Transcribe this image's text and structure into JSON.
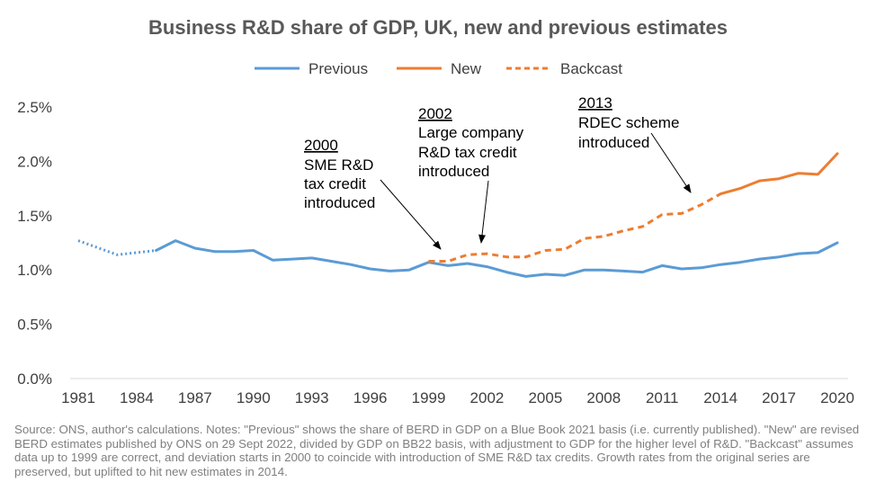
{
  "colors": {
    "previous": "#5B9BD5",
    "new": "#ED7D31",
    "backcast": "#ED7D31",
    "axis": "#D9D9D9",
    "text": "#404040"
  },
  "chart_data": {
    "type": "line",
    "title": "Business R&D share of GDP, UK, new and previous estimates",
    "xlabel": "",
    "ylabel": "",
    "x_ticks": [
      "1981",
      "1984",
      "1987",
      "1990",
      "1993",
      "1996",
      "1999",
      "2002",
      "2005",
      "2008",
      "2011",
      "2014",
      "2017",
      "2020"
    ],
    "y_ticks": [
      "0.0%",
      "0.5%",
      "1.0%",
      "1.5%",
      "2.0%",
      "2.5%"
    ],
    "xlim": [
      1981,
      2020
    ],
    "ylim": [
      0,
      2.5
    ],
    "grid": false,
    "legend_position": "top",
    "legend": [
      "Previous",
      "New",
      "Backcast"
    ],
    "series": [
      {
        "name": "Previous",
        "style": "solid",
        "x": [
          1985,
          1986,
          1987,
          1988,
          1989,
          1990,
          1991,
          1992,
          1993,
          1994,
          1995,
          1996,
          1997,
          1998,
          1999,
          2000,
          2001,
          2002,
          2003,
          2004,
          2005,
          2006,
          2007,
          2008,
          2009,
          2010,
          2011,
          2012,
          2013,
          2014,
          2015,
          2016,
          2017,
          2018,
          2019,
          2020
        ],
        "values": [
          1.18,
          1.27,
          1.2,
          1.17,
          1.17,
          1.18,
          1.09,
          1.1,
          1.11,
          1.08,
          1.05,
          1.01,
          0.99,
          1.0,
          1.07,
          1.04,
          1.06,
          1.03,
          0.98,
          0.94,
          0.96,
          0.95,
          1.0,
          1.0,
          0.99,
          0.98,
          1.04,
          1.01,
          1.02,
          1.05,
          1.07,
          1.1,
          1.12,
          1.15,
          1.16,
          1.25
        ]
      },
      {
        "name": "Previous",
        "style": "dotted",
        "x": [
          1981,
          1983,
          1985
        ],
        "values": [
          1.27,
          1.14,
          1.18
        ]
      },
      {
        "name": "Backcast",
        "style": "dashed",
        "x": [
          1999,
          2000,
          2001,
          2002,
          2003,
          2004,
          2005,
          2006,
          2007,
          2008,
          2009,
          2010,
          2011,
          2012,
          2013,
          2014
        ],
        "values": [
          1.08,
          1.08,
          1.14,
          1.15,
          1.12,
          1.12,
          1.18,
          1.19,
          1.29,
          1.31,
          1.36,
          1.4,
          1.51,
          1.52,
          1.6,
          1.7
        ]
      },
      {
        "name": "New",
        "style": "solid",
        "x": [
          2014,
          2015,
          2016,
          2017,
          2018,
          2019,
          2020
        ],
        "values": [
          1.7,
          1.75,
          1.82,
          1.84,
          1.89,
          1.88,
          2.07
        ]
      }
    ],
    "annotations": [
      {
        "year": "2000",
        "text": [
          "SME R&D",
          "tax credit",
          "introduced"
        ],
        "points_to_x": 2000,
        "points_to_y": 1.09
      },
      {
        "year": "2002",
        "text": [
          "Large company",
          "R&D tax credit",
          "introduced"
        ],
        "points_to_x": 2001.5,
        "points_to_y": 1.19
      },
      {
        "year": "2013",
        "text": [
          "RDEC scheme",
          "introduced"
        ],
        "points_to_x": 2012.5,
        "points_to_y": 1.66
      }
    ]
  },
  "source_note": "Source: ONS, author's calculations. Notes: \"Previous\" shows the share of BERD in GDP on a Blue Book 2021 basis (i.e. currently published). \"New\" are revised BERD estimates published by ONS on 29 Sept 2022, divided by GDP on BB22 basis, with adjustment to GDP for the higher level of R&D. \"Backcast\" assumes data up to 1999 are correct, and deviation starts in 2000 to coincide with introduction of SME R&D tax credits. Growth rates from the original series are preserved, but uplifted to hit new estimates in 2014."
}
